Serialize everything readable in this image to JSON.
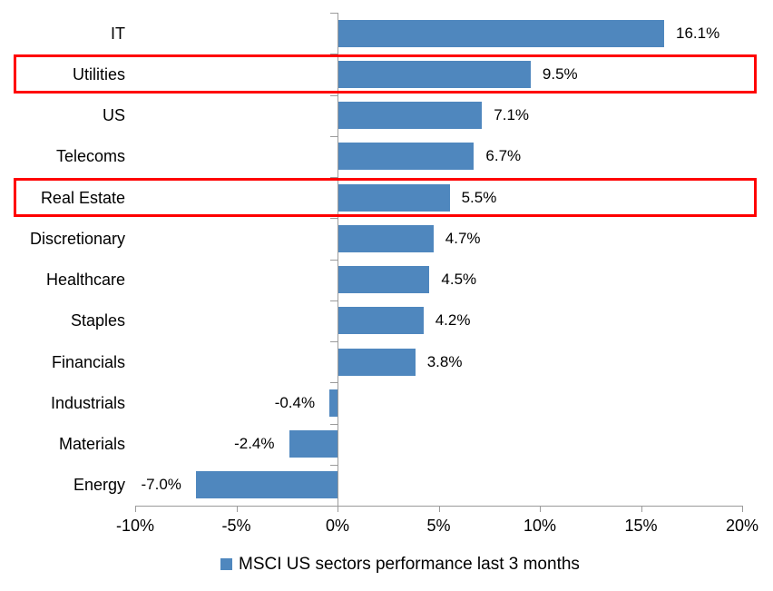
{
  "chart_data": {
    "type": "bar",
    "orientation": "horizontal",
    "title": "",
    "categories": [
      "IT",
      "Utilities",
      "US",
      "Telecoms",
      "Real Estate",
      "Discretionary",
      "Healthcare",
      "Staples",
      "Financials",
      "Industrials",
      "Materials",
      "Energy"
    ],
    "values": [
      16.1,
      9.5,
      7.1,
      6.7,
      5.5,
      4.7,
      4.5,
      4.2,
      3.8,
      -0.4,
      -2.4,
      -7.0
    ],
    "data_labels": [
      "16.1%",
      "9.5%",
      "7.1%",
      "6.7%",
      "5.5%",
      "4.7%",
      "4.5%",
      "4.2%",
      "3.8%",
      "-0.4%",
      "-2.4%",
      "-7.0%"
    ],
    "highlighted_categories": [
      "Utilities",
      "Real Estate"
    ],
    "x_axis": {
      "min": -10,
      "max": 20,
      "tick_step": 5,
      "tick_labels": [
        "-10%",
        "-5%",
        "0%",
        "5%",
        "10%",
        "15%",
        "20%"
      ]
    },
    "grid": false,
    "legend": {
      "position": "bottom",
      "label": "MSCI US sectors performance last 3 months"
    },
    "colors": {
      "bar": "#4F87BE",
      "highlight_box": "#FF0000",
      "axis": "#9B9B9B",
      "text": "#000000"
    }
  }
}
